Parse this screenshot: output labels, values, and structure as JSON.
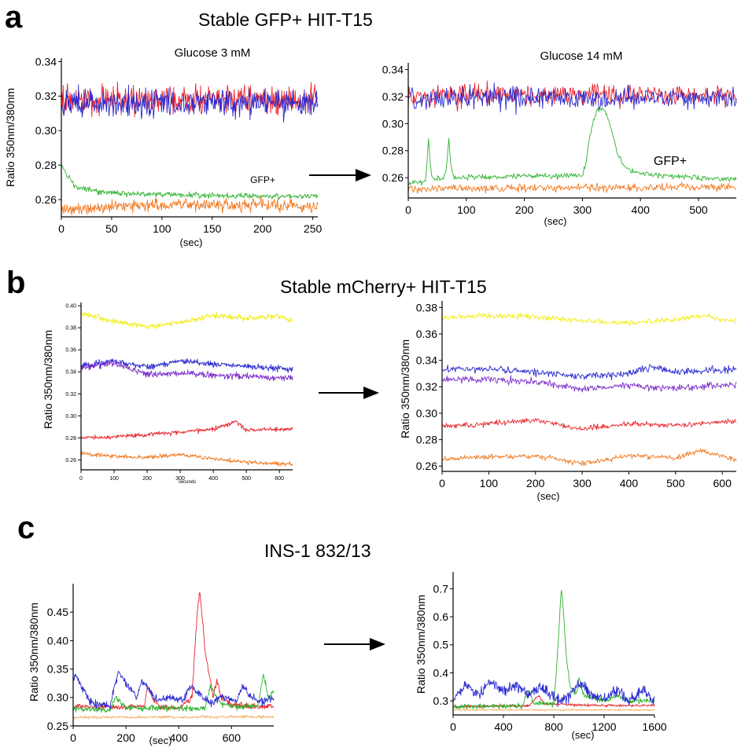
{
  "panels": {
    "a": {
      "letter": "a",
      "title": "Stable GFP+ HIT-T15"
    },
    "b": {
      "letter": "b",
      "title": "Stable mCherry+ HIT-T15"
    },
    "c": {
      "letter": "c",
      "title": "INS-1 832/13"
    }
  },
  "colors": {
    "red": "#e8242b",
    "blue": "#2a2ad0",
    "green": "#2fb32f",
    "orange": "#f07a22",
    "yellow": "#f2ee1e",
    "purple": "#7a2cc8",
    "peach": "#f2b266",
    "axis": "#000000"
  },
  "chart_data": [
    {
      "id": "a-left",
      "type": "line",
      "panel": "a",
      "title": "Glucose 3 mM",
      "xlabel": "(sec)",
      "ylabel": "Ratio 350nm/380nm",
      "xlim": [
        0,
        255
      ],
      "ylim": [
        0.25,
        0.342
      ],
      "xticks": [
        "0",
        "50",
        "100",
        "150",
        "200",
        "250"
      ],
      "yticks": [
        "0.26",
        "0.28",
        "0.30",
        "0.32",
        "0.34"
      ],
      "annotations": [
        "GFP+"
      ],
      "series": [
        {
          "color": "#e8242b",
          "x": [
            0,
            255
          ],
          "y": [
            0.318,
            0.318
          ],
          "noise": 0.005
        },
        {
          "color": "#2a2ad0",
          "x": [
            0,
            255
          ],
          "y": [
            0.316,
            0.316
          ],
          "noise": 0.005
        },
        {
          "name": "GFP+",
          "color": "#2fb32f",
          "x": [
            0,
            5,
            15,
            40,
            100,
            200,
            255
          ],
          "y": [
            0.28,
            0.275,
            0.267,
            0.264,
            0.263,
            0.262,
            0.262
          ],
          "noise": 0.001
        },
        {
          "color": "#f07a22",
          "x": [
            0,
            50,
            100,
            150,
            200,
            255
          ],
          "y": [
            0.254,
            0.256,
            0.257,
            0.257,
            0.257,
            0.256
          ],
          "noise": 0.0022
        }
      ]
    },
    {
      "id": "a-right",
      "type": "line",
      "panel": "a",
      "title": "Glucose 14 mM",
      "xlabel": "(sec)",
      "ylabel": "",
      "xlim": [
        0,
        565
      ],
      "ylim": [
        0.245,
        0.345
      ],
      "xticks": [
        "0",
        "100",
        "200",
        "300",
        "400",
        "500"
      ],
      "yticks": [
        "0.26",
        "0.28",
        "0.30",
        "0.32",
        "0.34"
      ],
      "annotations": [
        "GFP+"
      ],
      "series": [
        {
          "color": "#e8242b",
          "x": [
            0,
            565
          ],
          "y": [
            0.321,
            0.321
          ],
          "noise": 0.005
        },
        {
          "color": "#2a2ad0",
          "x": [
            0,
            565
          ],
          "y": [
            0.319,
            0.319
          ],
          "noise": 0.005
        },
        {
          "name": "GFP+",
          "color": "#2fb32f",
          "x": [
            0,
            30,
            35,
            38,
            42,
            60,
            65,
            70,
            73,
            78,
            300,
            305,
            310,
            318,
            325,
            335,
            345,
            352,
            360,
            370,
            380,
            400,
            450,
            500,
            565
          ],
          "y": [
            0.256,
            0.257,
            0.289,
            0.268,
            0.259,
            0.259,
            0.264,
            0.289,
            0.27,
            0.26,
            0.262,
            0.268,
            0.285,
            0.3,
            0.31,
            0.312,
            0.303,
            0.292,
            0.278,
            0.27,
            0.266,
            0.263,
            0.261,
            0.26,
            0.259
          ],
          "noise": 0.0012
        },
        {
          "color": "#f07a22",
          "x": [
            0,
            565
          ],
          "y": [
            0.252,
            0.253
          ],
          "noise": 0.0018
        }
      ]
    },
    {
      "id": "b-left",
      "type": "line",
      "panel": "b",
      "title": "",
      "xlabel": "seconds",
      "ylabel": "Ratio 350nm/380nm",
      "xlim": [
        0,
        640
      ],
      "ylim": [
        0.251,
        0.403
      ],
      "xticks": [
        "0",
        "100",
        "200",
        "300",
        "400",
        "500",
        "600"
      ],
      "yticks": [
        "0.26",
        "0.28",
        "0.30",
        "0.32",
        "0.34",
        "0.36",
        "0.38",
        "0.40"
      ],
      "series": [
        {
          "color": "#f2ee1e",
          "x": [
            0,
            100,
            200,
            300,
            400,
            500,
            600,
            640
          ],
          "y": [
            0.393,
            0.386,
            0.381,
            0.385,
            0.391,
            0.389,
            0.39,
            0.386
          ],
          "noise": 0.0015
        },
        {
          "color": "#2a2ad0",
          "x": [
            0,
            100,
            200,
            300,
            400,
            500,
            640
          ],
          "y": [
            0.345,
            0.35,
            0.344,
            0.35,
            0.347,
            0.345,
            0.342
          ],
          "noise": 0.0018
        },
        {
          "color": "#7a2cc8",
          "x": [
            0,
            100,
            200,
            300,
            400,
            500,
            640
          ],
          "y": [
            0.344,
            0.348,
            0.338,
            0.339,
            0.337,
            0.336,
            0.334
          ],
          "noise": 0.0018
        },
        {
          "color": "#e8242b",
          "x": [
            0,
            100,
            200,
            300,
            400,
            470,
            500,
            640
          ],
          "y": [
            0.28,
            0.281,
            0.283,
            0.285,
            0.288,
            0.295,
            0.287,
            0.288
          ],
          "noise": 0.0012
        },
        {
          "color": "#f07a22",
          "x": [
            0,
            100,
            200,
            300,
            400,
            500,
            640
          ],
          "y": [
            0.266,
            0.263,
            0.262,
            0.265,
            0.261,
            0.258,
            0.256
          ],
          "noise": 0.0012
        }
      ]
    },
    {
      "id": "b-right",
      "type": "line",
      "panel": "b",
      "title": "",
      "xlabel": "(sec)",
      "ylabel": "Ratio 350nm/380nm",
      "xlim": [
        0,
        630
      ],
      "ylim": [
        0.256,
        0.385
      ],
      "xticks": [
        "0",
        "100",
        "200",
        "300",
        "400",
        "500",
        "600"
      ],
      "yticks": [
        "0.26",
        "0.28",
        "0.30",
        "0.32",
        "0.34",
        "0.36",
        "0.38"
      ],
      "series": [
        {
          "color": "#f2ee1e",
          "x": [
            0,
            100,
            200,
            300,
            400,
            500,
            550,
            630
          ],
          "y": [
            0.372,
            0.374,
            0.373,
            0.37,
            0.368,
            0.371,
            0.374,
            0.369
          ],
          "noise": 0.0013
        },
        {
          "color": "#2a2ad0",
          "x": [
            0,
            100,
            200,
            300,
            400,
            450,
            500,
            630
          ],
          "y": [
            0.333,
            0.334,
            0.331,
            0.328,
            0.33,
            0.335,
            0.331,
            0.333
          ],
          "noise": 0.0016
        },
        {
          "color": "#7a2cc8",
          "x": [
            0,
            100,
            200,
            300,
            400,
            500,
            630
          ],
          "y": [
            0.325,
            0.326,
            0.324,
            0.318,
            0.321,
            0.319,
            0.322
          ],
          "noise": 0.0016
        },
        {
          "color": "#e8242b",
          "x": [
            0,
            100,
            200,
            300,
            400,
            500,
            630
          ],
          "y": [
            0.29,
            0.292,
            0.295,
            0.288,
            0.292,
            0.291,
            0.294
          ],
          "noise": 0.0012
        },
        {
          "color": "#f07a22",
          "x": [
            0,
            100,
            200,
            300,
            400,
            500,
            550,
            630
          ],
          "y": [
            0.265,
            0.267,
            0.268,
            0.262,
            0.268,
            0.266,
            0.272,
            0.265
          ],
          "noise": 0.0012
        }
      ]
    },
    {
      "id": "c-left",
      "type": "line",
      "panel": "c",
      "title": "",
      "xlabel": "(sec)",
      "ylabel": "Ratio 350nm/380nm",
      "xlim": [
        0,
        760
      ],
      "ylim": [
        0.25,
        0.5
      ],
      "xticks": [
        "0",
        "200",
        "400",
        "600"
      ],
      "yticks": [
        "0.25",
        "0.30",
        "0.35",
        "0.40",
        "0.45"
      ],
      "series": [
        {
          "color": "#f2b266",
          "x": [
            0,
            760
          ],
          "y": [
            0.265,
            0.266
          ],
          "noise": 0.0015
        },
        {
          "color": "#e8242b",
          "x": [
            0,
            100,
            270,
            282,
            300,
            330,
            400,
            450,
            470,
            480,
            500,
            530,
            545,
            560,
            600,
            700,
            760
          ],
          "y": [
            0.285,
            0.283,
            0.284,
            0.32,
            0.3,
            0.283,
            0.281,
            0.3,
            0.45,
            0.49,
            0.38,
            0.3,
            0.33,
            0.3,
            0.287,
            0.284,
            0.285
          ],
          "noise": 0.003
        },
        {
          "color": "#2fb32f",
          "x": [
            0,
            140,
            160,
            200,
            400,
            500,
            520,
            560,
            620,
            700,
            720,
            740,
            760
          ],
          "y": [
            0.28,
            0.278,
            0.3,
            0.282,
            0.281,
            0.28,
            0.32,
            0.29,
            0.283,
            0.285,
            0.34,
            0.3,
            0.31
          ],
          "noise": 0.003
        },
        {
          "color": "#2a2ad0",
          "x": [
            0,
            10,
            60,
            80,
            140,
            170,
            240,
            260,
            320,
            360,
            420,
            440,
            520,
            560,
            620,
            640,
            700,
            760
          ],
          "y": [
            0.33,
            0.34,
            0.295,
            0.29,
            0.285,
            0.345,
            0.3,
            0.33,
            0.295,
            0.3,
            0.295,
            0.32,
            0.29,
            0.3,
            0.295,
            0.32,
            0.29,
            0.3
          ],
          "noise": 0.004
        }
      ]
    },
    {
      "id": "c-right",
      "type": "line",
      "panel": "c",
      "title": "",
      "xlabel": "(sec)",
      "ylabel": "Ratio 350nm/380nm",
      "xlim": [
        0,
        1600
      ],
      "ylim": [
        0.25,
        0.76
      ],
      "xticks": [
        "0",
        "400",
        "800",
        "1200",
        "1600"
      ],
      "yticks": [
        "0.3",
        "0.4",
        "0.5",
        "0.6",
        "0.7"
      ],
      "series": [
        {
          "color": "#f2b266",
          "x": [
            0,
            1600
          ],
          "y": [
            0.268,
            0.268
          ],
          "noise": 0.002
        },
        {
          "color": "#e8242b",
          "x": [
            0,
            600,
            680,
            720,
            1000,
            1600
          ],
          "y": [
            0.28,
            0.282,
            0.32,
            0.29,
            0.285,
            0.283
          ],
          "noise": 0.003
        },
        {
          "color": "#2fb32f",
          "x": [
            0,
            550,
            600,
            640,
            800,
            820,
            860,
            880,
            900,
            930,
            980,
            1000,
            1040,
            1200,
            1300,
            1400,
            1600
          ],
          "y": [
            0.28,
            0.282,
            0.34,
            0.29,
            0.29,
            0.4,
            0.7,
            0.6,
            0.45,
            0.35,
            0.32,
            0.38,
            0.32,
            0.3,
            0.32,
            0.3,
            0.3
          ],
          "noise": 0.006
        },
        {
          "color": "#2a2ad0",
          "x": [
            0,
            100,
            200,
            300,
            400,
            500,
            600,
            700,
            850,
            950,
            1000,
            1100,
            1200,
            1300,
            1400,
            1500,
            1600
          ],
          "y": [
            0.3,
            0.36,
            0.32,
            0.37,
            0.33,
            0.36,
            0.32,
            0.35,
            0.3,
            0.33,
            0.37,
            0.32,
            0.31,
            0.34,
            0.3,
            0.34,
            0.3
          ],
          "noise": 0.012
        }
      ]
    }
  ]
}
